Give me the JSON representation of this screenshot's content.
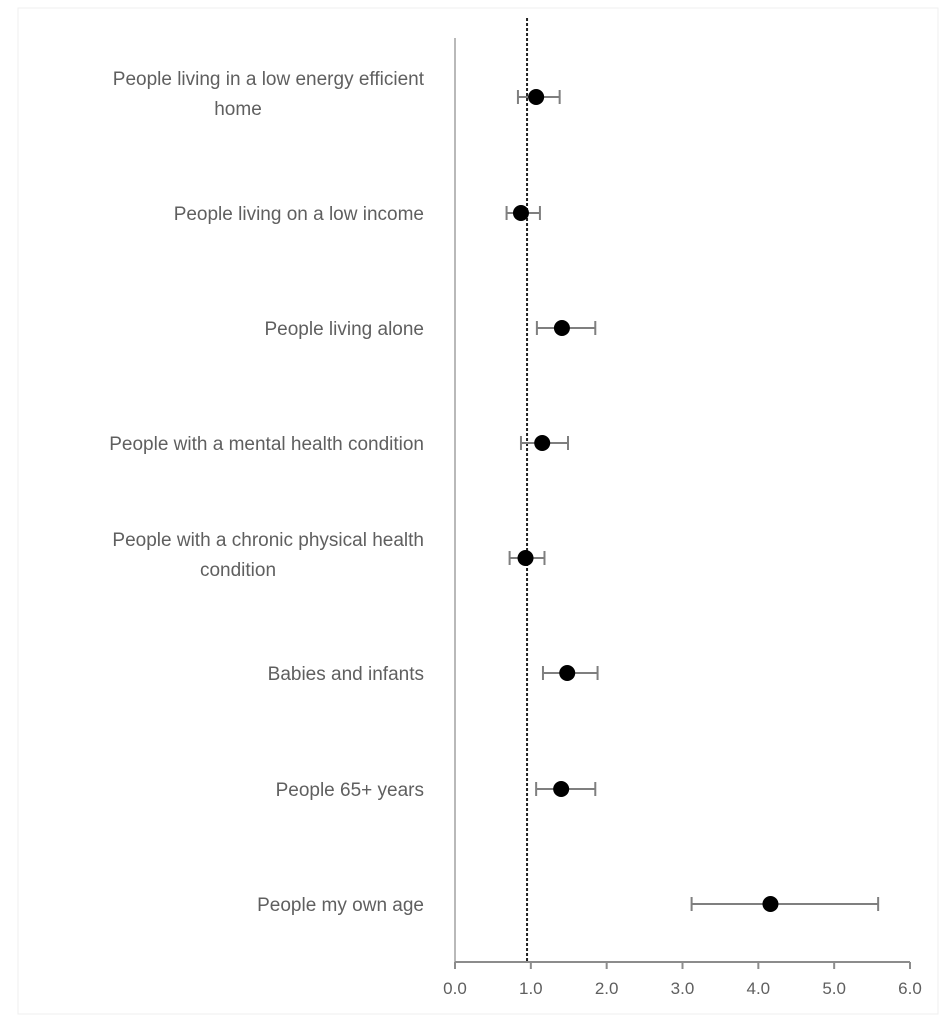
{
  "chart_data": {
    "type": "scatter",
    "categories": [
      [
        "People living in a low energy efficient",
        "home"
      ],
      [
        "People living on a low income"
      ],
      [
        "People living alone"
      ],
      [
        "People with a mental health condition"
      ],
      [
        "People with a chronic physical health",
        "condition"
      ],
      [
        "Babies and infants"
      ],
      [
        "People 65+ years"
      ],
      [
        "People my own age"
      ]
    ],
    "estimates": [
      1.07,
      0.87,
      1.41,
      1.15,
      0.93,
      1.48,
      1.4,
      4.16
    ],
    "ci_lower": [
      0.83,
      0.68,
      1.08,
      0.87,
      0.72,
      1.16,
      1.07,
      3.12
    ],
    "ci_upper": [
      1.38,
      1.12,
      1.85,
      1.49,
      1.18,
      1.88,
      1.85,
      5.58
    ],
    "reference_line": 0.95,
    "xlim": [
      0,
      6
    ],
    "xticks": [
      "0.0",
      "1.0",
      "2.0",
      "3.0",
      "4.0",
      "5.0",
      "6.0"
    ],
    "marker_color": "#000000",
    "errorbar_color": "#7f7f7f",
    "axis_color": "#8c8c8c",
    "reference_line_style": "dashed",
    "grid": false
  }
}
